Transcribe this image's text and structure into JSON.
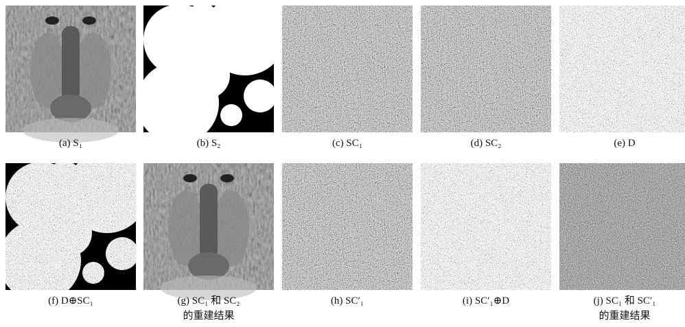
{
  "figure": {
    "panels": [
      {
        "caption": [
          "(a) S₁"
        ]
      },
      {
        "caption": [
          "(b) S₂"
        ]
      },
      {
        "caption": [
          "(c) SC₁"
        ]
      },
      {
        "caption": [
          "(d) SC₂"
        ]
      },
      {
        "caption": [
          "(e) D"
        ]
      },
      {
        "caption": [
          "(f) D⊕SC₁"
        ]
      },
      {
        "caption": [
          "(g) SC₁ 和 SC₂",
          "的重建结果"
        ]
      },
      {
        "caption": [
          "(h) SC′₁"
        ]
      },
      {
        "caption": [
          "(i) SC′₁⊕D"
        ]
      },
      {
        "caption": [
          "(j) SC₁ 和 SC′₁",
          "的重建结果"
        ]
      }
    ]
  }
}
